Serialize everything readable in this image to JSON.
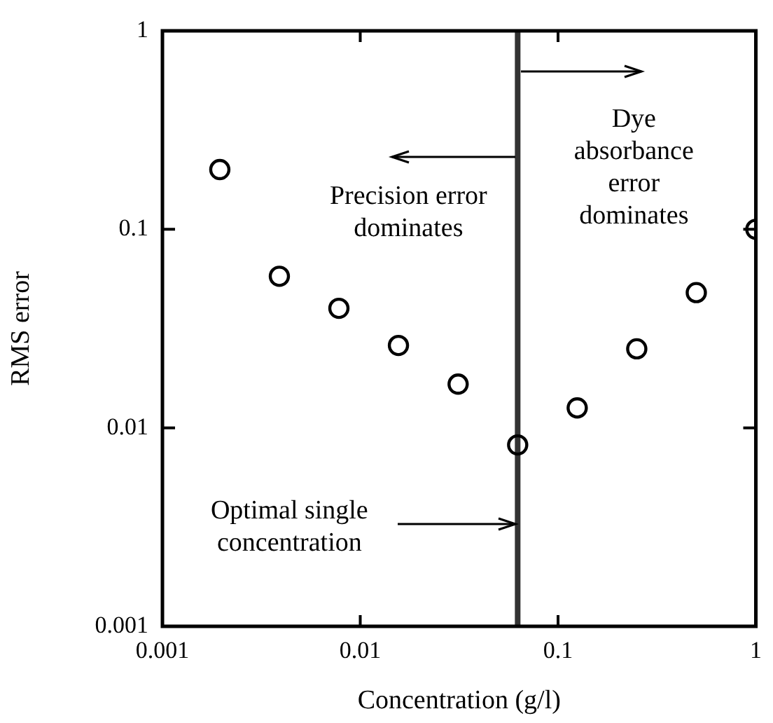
{
  "chart_data": {
    "type": "scatter",
    "xlabel": "Concentration (g/l)",
    "ylabel": "RMS error",
    "x": [
      0.00195,
      0.0039,
      0.0078,
      0.0156,
      0.03125,
      0.0625,
      0.125,
      0.25,
      0.5,
      1
    ],
    "values": [
      0.2,
      0.058,
      0.04,
      0.026,
      0.0166,
      0.0082,
      0.0126,
      0.025,
      0.048,
      0.1
    ],
    "color": "#000000",
    "marker": "circle",
    "log": "xy",
    "grid": false,
    "xlim": [
      0.001,
      1
    ],
    "ylim": [
      0.001,
      1
    ],
    "xticks": [
      0.001,
      0.01,
      0.1,
      1
    ],
    "yticks": [
      0.001,
      0.01,
      0.1,
      1
    ],
    "ref_lines": [
      {
        "axis": "x",
        "value": 0.0625,
        "color": "#333333",
        "label": "Optimal single concentration"
      }
    ],
    "annotations": [
      {
        "text": "Precision error dominates",
        "x": 0.0625,
        "y": 0.23
      },
      {
        "text": "Dye absorbance error dominates",
        "x": 0.0625,
        "y": 0.62
      }
    ]
  }
}
